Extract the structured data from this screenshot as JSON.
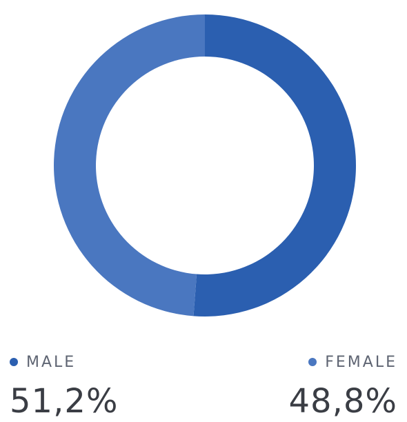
{
  "chart_data": {
    "type": "pie",
    "donut": true,
    "categories": [
      "MALE",
      "FEMALE"
    ],
    "values": [
      51.2,
      48.8
    ],
    "labels": [
      "51,2%",
      "48,8%"
    ],
    "colors": [
      "#2b5fb0",
      "#4a77c0"
    ],
    "legend_position": "bottom"
  },
  "legend": {
    "male": {
      "label": "MALE",
      "value": "51,2%",
      "color": "#2b5fb0"
    },
    "female": {
      "label": "FEMALE",
      "value": "48,8%",
      "color": "#4a77c0"
    }
  }
}
